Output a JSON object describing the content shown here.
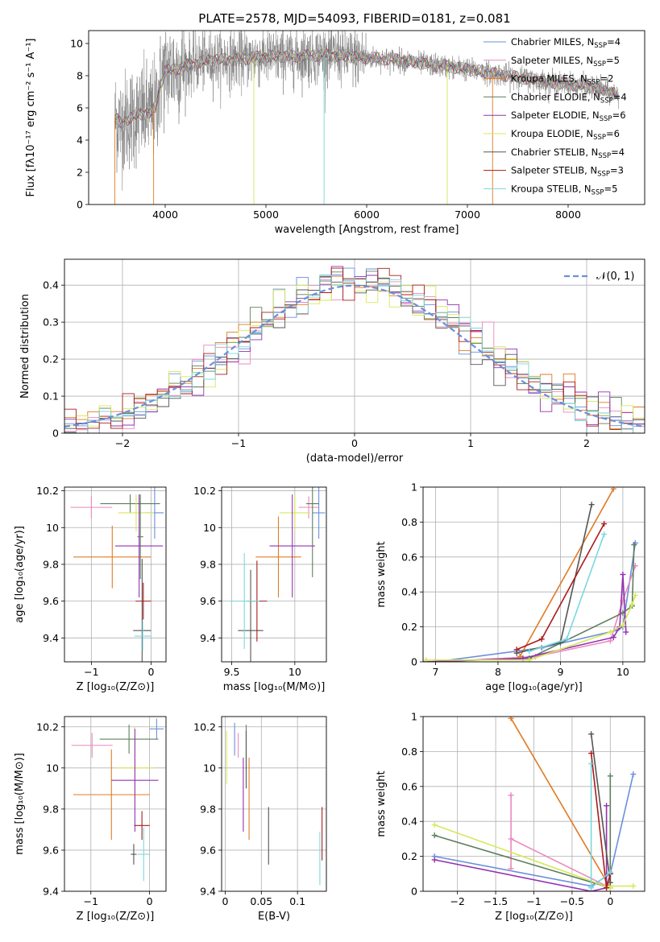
{
  "figure_title": "PLATE=2578, MJD=54093, FIBERID=0181, z=0.081",
  "series_colors": {
    "Chabrier MILES": "#6a8fdc",
    "Salpeter MILES": "#e989be",
    "Kroupa MILES": "#e07b25",
    "Chabrier ELODIE": "#5e7f5e",
    "Salpeter ELODIE": "#9333b0",
    "Kroupa ELODIE": "#d6e85a",
    "Chabrier STELIB": "#555555",
    "Salpeter STELIB": "#aa1c1c",
    "Kroupa STELIB": "#7ad8de"
  },
  "legend_spectrum": [
    {
      "label": "Chabrier MILES, N",
      "sub": "SSP",
      "suffix": "=4",
      "series": "Chabrier MILES"
    },
    {
      "label": "Salpeter MILES, N",
      "sub": "SSP",
      "suffix": "=5",
      "series": "Salpeter MILES"
    },
    {
      "label": "Kroupa MILES, N",
      "sub": "SSP",
      "suffix": "=2",
      "series": "Kroupa MILES"
    },
    {
      "label": "Chabrier ELODIE, N",
      "sub": "SSP",
      "suffix": "=4",
      "series": "Chabrier ELODIE"
    },
    {
      "label": "Salpeter ELODIE, N",
      "sub": "SSP",
      "suffix": "=6",
      "series": "Salpeter ELODIE"
    },
    {
      "label": "Kroupa ELODIE, N",
      "sub": "SSP",
      "suffix": "=6",
      "series": "Kroupa ELODIE"
    },
    {
      "label": "Chabrier STELIB, N",
      "sub": "SSP",
      "suffix": "=4",
      "series": "Chabrier STELIB"
    },
    {
      "label": "Salpeter STELIB, N",
      "sub": "SSP",
      "suffix": "=3",
      "series": "Salpeter STELIB"
    },
    {
      "label": "Kroupa STELIB, N",
      "sub": "SSP",
      "suffix": "=5",
      "series": "Kroupa STELIB"
    }
  ],
  "legend_hist": {
    "label": "𝒩(0, 1)",
    "color": "#6a8fdc"
  },
  "chart_data": [
    {
      "id": "spectrum",
      "type": "line",
      "xlabel": "wavelength [Angstrom, rest frame]",
      "ylabel": "Flux [fλ10⁻¹⁷ erg cm⁻² s⁻¹ A⁻¹]",
      "xlim": [
        3240,
        8760
      ],
      "ylim": [
        0,
        10.8
      ],
      "xticks": [
        4000,
        5000,
        6000,
        7000,
        8000
      ],
      "yticks": [
        0,
        2,
        4,
        6,
        8,
        10
      ],
      "grid": false,
      "legend_position": "right",
      "observed_color": "#808080",
      "model_color": "#7ad8de",
      "continuum": [
        [
          3500,
          5.4
        ],
        [
          3560,
          5.0
        ],
        [
          3650,
          5.4
        ],
        [
          3750,
          5.6
        ],
        [
          3850,
          5.7
        ],
        [
          3900,
          6.0
        ],
        [
          3950,
          7.4
        ],
        [
          4000,
          8.3
        ],
        [
          4100,
          8.4
        ],
        [
          4300,
          8.8
        ],
        [
          4500,
          9.0
        ],
        [
          4700,
          9.0
        ],
        [
          5000,
          9.2
        ],
        [
          5300,
          9.2
        ],
        [
          5600,
          9.3
        ],
        [
          6000,
          9.1
        ],
        [
          6300,
          9.0
        ],
        [
          6600,
          8.7
        ],
        [
          6900,
          8.5
        ],
        [
          7200,
          8.2
        ],
        [
          7500,
          7.9
        ],
        [
          7800,
          7.6
        ],
        [
          8100,
          7.4
        ],
        [
          8300,
          7.2
        ],
        [
          8500,
          6.8
        ]
      ]
    },
    {
      "id": "residual_histogram",
      "type": "step",
      "xlabel": "(data-model)/error",
      "ylabel": "Normed distribution",
      "xlim": [
        -2.5,
        2.5
      ],
      "ylim": [
        0,
        0.47
      ],
      "xticks": [
        -2,
        -1,
        0,
        1,
        2
      ],
      "yticks": [
        0.0,
        0.1,
        0.2,
        0.3,
        0.4
      ],
      "grid": true,
      "legend_position": "top-right",
      "bin_width": 0.1,
      "reference_curve": "normal(0,1)"
    },
    {
      "id": "age_vs_Z",
      "type": "errorbar",
      "xlabel": "Z [log₁₀(Z/Z⊙)]",
      "ylabel": "age  [log₁₀(age/yr)]",
      "xlim": [
        -1.45,
        0.25
      ],
      "ylim": [
        9.27,
        10.22
      ],
      "xticks": [
        -1,
        0
      ],
      "yticks": [
        9.4,
        9.6,
        9.8,
        10.0,
        10.2
      ],
      "grid": true,
      "points": [
        {
          "series": "Salpeter MILES",
          "x": -1.0,
          "xerr": 0.35,
          "y": 10.11,
          "yerr": 0.06
        },
        {
          "series": "Kroupa MILES",
          "x": -0.65,
          "xerr": 0.65,
          "y": 9.84,
          "yerr": 0.17
        },
        {
          "series": "Chabrier MILES",
          "x": 0.06,
          "xerr": 0.15,
          "y": 10.08,
          "yerr": 0.14
        },
        {
          "series": "Chabrier ELODIE",
          "x": -0.35,
          "xerr": 0.5,
          "y": 10.13,
          "yerr": 0.05
        },
        {
          "series": "Kroupa ELODIE",
          "x": -0.25,
          "xerr": 0.3,
          "y": 10.08,
          "yerr": 0.1
        },
        {
          "series": "Salpeter ELODIE",
          "x": -0.2,
          "xerr": 0.4,
          "y": 9.9,
          "yerr": 0.28
        },
        {
          "series": "Chabrier STELIB",
          "x": -0.15,
          "xerr": 0.15,
          "y": 9.44,
          "yerr": 0.39
        },
        {
          "series": "Salpeter STELIB",
          "x": -0.13,
          "xerr": 0.13,
          "y": 9.6,
          "yerr": 0.1
        },
        {
          "series": "Kroupa STELIB",
          "x": -0.14,
          "xerr": 0.14,
          "y": 9.41,
          "yerr": 0.08
        },
        {
          "series": "Chabrier ELODIE",
          "x": -0.18,
          "xerr": 0.05,
          "y": 9.95,
          "yerr": 0.23
        }
      ]
    },
    {
      "id": "age_vs_mass",
      "type": "errorbar",
      "xlabel": "mass [log₁₀(M/M⊙)]",
      "ylabel": "",
      "xlim": [
        9.42,
        10.25
      ],
      "ylim": [
        9.27,
        10.22
      ],
      "xticks": [
        9.5,
        10.0
      ],
      "yticks": [
        9.4,
        9.6,
        9.8,
        10.0,
        10.2
      ],
      "grid": true,
      "points": [
        {
          "series": "Kroupa MILES",
          "x": 9.87,
          "xerr": 0.18,
          "y": 9.84,
          "yerr": 0.22
        },
        {
          "series": "Salpeter MILES",
          "x": 10.11,
          "xerr": 0.08,
          "y": 10.11,
          "yerr": 0.06
        },
        {
          "series": "Chabrier MILES",
          "x": 10.19,
          "xerr": 0.05,
          "y": 10.08,
          "yerr": 0.14
        },
        {
          "series": "Chabrier ELODIE",
          "x": 10.14,
          "xerr": 0.05,
          "y": 10.13,
          "yerr": 0.4
        },
        {
          "series": "Kroupa ELODIE",
          "x": 10.0,
          "xerr": 0.12,
          "y": 10.08,
          "yerr": 0.1
        },
        {
          "series": "Salpeter ELODIE",
          "x": 9.98,
          "xerr": 0.18,
          "y": 9.9,
          "yerr": 0.28
        },
        {
          "series": "Chabrier STELIB",
          "x": 9.65,
          "xerr": 0.1,
          "y": 9.44,
          "yerr": 0.33
        },
        {
          "series": "Salpeter STELIB",
          "x": 9.7,
          "xerr": 0.08,
          "y": 9.6,
          "yerr": 0.22
        },
        {
          "series": "Kroupa STELIB",
          "x": 9.6,
          "xerr": 0.12,
          "y": 9.6,
          "yerr": 0.26
        }
      ]
    },
    {
      "id": "mass_weight_vs_age",
      "type": "line",
      "xlabel": "age  [log₁₀(age/yr)]",
      "ylabel": "mass weight",
      "xlim": [
        6.8,
        10.35
      ],
      "ylim": [
        0,
        1.0
      ],
      "xticks": [
        7,
        8,
        9,
        10
      ],
      "yticks": [
        0.0,
        0.2,
        0.4,
        0.6,
        0.8,
        1.0
      ],
      "grid": true,
      "series": [
        {
          "name": "Chabrier MILES",
          "points": [
            [
              7.0,
              0.0
            ],
            [
              8.7,
              0.08
            ],
            [
              9.9,
              0.18
            ],
            [
              10.0,
              0.2
            ],
            [
              10.2,
              0.68
            ]
          ]
        },
        {
          "name": "Salpeter MILES",
          "points": [
            [
              7.0,
              0.0
            ],
            [
              8.6,
              0.03
            ],
            [
              9.8,
              0.12
            ],
            [
              10.0,
              0.35
            ],
            [
              10.2,
              0.55
            ]
          ]
        },
        {
          "name": "Kroupa MILES",
          "points": [
            [
              8.35,
              0.03
            ],
            [
              9.85,
              0.99
            ]
          ]
        },
        {
          "name": "Chabrier ELODIE",
          "points": [
            [
              6.85,
              0.0
            ],
            [
              8.5,
              0.02
            ],
            [
              10.0,
              0.28
            ],
            [
              10.15,
              0.32
            ],
            [
              10.18,
              0.67
            ]
          ]
        },
        {
          "name": "Salpeter ELODIE",
          "points": [
            [
              6.85,
              0.0
            ],
            [
              8.4,
              0.02
            ],
            [
              9.85,
              0.14
            ],
            [
              9.95,
              0.2
            ],
            [
              10.0,
              0.5
            ],
            [
              10.05,
              0.17
            ]
          ]
        },
        {
          "name": "Kroupa ELODIE",
          "points": [
            [
              6.85,
              0.01
            ],
            [
              8.5,
              0.01
            ],
            [
              9.8,
              0.17
            ],
            [
              10.0,
              0.21
            ],
            [
              10.15,
              0.33
            ],
            [
              10.2,
              0.38
            ]
          ]
        },
        {
          "name": "Chabrier STELIB",
          "points": [
            [
              8.3,
              0.05
            ],
            [
              9.0,
              0.11
            ],
            [
              9.5,
              0.9
            ]
          ]
        },
        {
          "name": "Salpeter STELIB",
          "points": [
            [
              8.3,
              0.07
            ],
            [
              8.7,
              0.13
            ],
            [
              9.7,
              0.79
            ]
          ]
        },
        {
          "name": "Kroupa STELIB",
          "points": [
            [
              8.5,
              0.06
            ],
            [
              9.1,
              0.13
            ],
            [
              9.7,
              0.73
            ]
          ]
        }
      ]
    },
    {
      "id": "mass_vs_Z",
      "type": "errorbar",
      "xlabel": "Z [log₁₀(Z/Z⊙)]",
      "ylabel": "mass [log₁₀(M/M⊙)]",
      "xlim": [
        -1.45,
        0.28
      ],
      "ylim": [
        9.4,
        10.25
      ],
      "xticks": [
        -1,
        0
      ],
      "yticks": [
        9.4,
        9.6,
        9.8,
        10.0,
        10.2
      ],
      "grid": true,
      "points": [
        {
          "series": "Salpeter MILES",
          "x": -0.98,
          "xerr": 0.35,
          "y": 10.11,
          "yerr": 0.06
        },
        {
          "series": "Kroupa MILES",
          "x": -0.65,
          "xerr": 0.65,
          "y": 9.87,
          "yerr": 0.22
        },
        {
          "series": "Chabrier MILES",
          "x": 0.12,
          "xerr": 0.12,
          "y": 10.19,
          "yerr": 0.05
        },
        {
          "series": "Chabrier ELODIE",
          "x": -0.35,
          "xerr": 0.5,
          "y": 10.14,
          "yerr": 0.07
        },
        {
          "series": "Kroupa ELODIE",
          "x": -0.25,
          "xerr": 0.32,
          "y": 10.0,
          "yerr": 0.2
        },
        {
          "series": "Salpeter ELODIE",
          "x": -0.25,
          "xerr": 0.4,
          "y": 9.94,
          "yerr": 0.25
        },
        {
          "series": "Chabrier STELIB",
          "x": -0.27,
          "xerr": 0.05,
          "y": 9.58,
          "yerr": 0.05
        },
        {
          "series": "Salpeter STELIB",
          "x": -0.13,
          "xerr": 0.13,
          "y": 9.72,
          "yerr": 0.07
        },
        {
          "series": "Kroupa STELIB",
          "x": -0.1,
          "xerr": 0.1,
          "y": 9.58,
          "yerr": 0.13
        }
      ]
    },
    {
      "id": "mass_vs_EBV",
      "type": "errorbar",
      "xlabel": "E(B-V)",
      "ylabel": "",
      "xlim": [
        -0.005,
        0.14
      ],
      "ylim": [
        9.4,
        10.25
      ],
      "xticks": [
        0.0,
        0.05,
        0.1
      ],
      "yticks": [
        9.4,
        9.6,
        9.8,
        10.0,
        10.2
      ],
      "grid": true,
      "points": [
        {
          "series": "Kroupa ELODIE",
          "x": 0.002,
          "xerr": 0.0,
          "y": 10.05,
          "yerr": 0.13
        },
        {
          "series": "Chabrier MILES",
          "x": 0.013,
          "xerr": 0.0,
          "y": 10.14,
          "yerr": 0.08
        },
        {
          "series": "Salpeter MILES",
          "x": 0.018,
          "xerr": 0.0,
          "y": 10.11,
          "yerr": 0.06
        },
        {
          "series": "Salpeter ELODIE",
          "x": 0.025,
          "xerr": 0.0,
          "y": 9.87,
          "yerr": 0.18
        },
        {
          "series": "Chabrier ELODIE",
          "x": 0.029,
          "xerr": 0.0,
          "y": 10.1,
          "yerr": 0.11
        },
        {
          "series": "Chabrier STELIB",
          "x": 0.029,
          "xerr": 0.0,
          "y": 10.04,
          "yerr": 0.14
        },
        {
          "series": "Kroupa MILES",
          "x": 0.033,
          "xerr": 0.0,
          "y": 9.85,
          "yerr": 0.2
        },
        {
          "series": "Chabrier STELIB",
          "x": 0.06,
          "xerr": 0.0,
          "y": 9.67,
          "yerr": 0.14
        },
        {
          "series": "Kroupa STELIB",
          "x": 0.131,
          "xerr": 0.0,
          "y": 9.56,
          "yerr": 0.13
        },
        {
          "series": "Salpeter STELIB",
          "x": 0.134,
          "xerr": 0.0,
          "y": 9.68,
          "yerr": 0.13
        }
      ]
    },
    {
      "id": "mass_weight_vs_Z",
      "type": "line",
      "xlabel": "Z [log₁₀(Z/Z⊙)]",
      "ylabel": "mass weight",
      "xlim": [
        -2.45,
        0.45
      ],
      "ylim": [
        0,
        1.0
      ],
      "xticks": [
        -2.0,
        -1.5,
        -1.0,
        -0.5,
        0.0
      ],
      "yticks": [
        0.0,
        0.2,
        0.4,
        0.6,
        0.8,
        1.0
      ],
      "grid": true,
      "series": [
        {
          "name": "Chabrier MILES",
          "points": [
            [
              -2.3,
              0.2
            ],
            [
              -0.25,
              0.03
            ],
            [
              0.0,
              0.1
            ],
            [
              0.3,
              0.67
            ]
          ]
        },
        {
          "name": "Salpeter MILES",
          "points": [
            [
              -1.3,
              0.55
            ],
            [
              -1.3,
              0.13
            ],
            [
              -1.3,
              0.3
            ],
            [
              0.0,
              0.02
            ]
          ]
        },
        {
          "name": "Kroupa MILES",
          "points": [
            [
              -1.3,
              0.99
            ],
            [
              0.0,
              0.02
            ]
          ]
        },
        {
          "name": "Chabrier ELODIE",
          "points": [
            [
              -2.3,
              0.32
            ],
            [
              0.0,
              0.02
            ],
            [
              0.0,
              0.66
            ]
          ]
        },
        {
          "name": "Salpeter ELODIE",
          "points": [
            [
              -2.3,
              0.18
            ],
            [
              -0.25,
              0.0
            ],
            [
              -0.05,
              0.02
            ],
            [
              -0.05,
              0.49
            ]
          ]
        },
        {
          "name": "Kroupa ELODIE",
          "points": [
            [
              -2.3,
              0.38
            ],
            [
              0.0,
              0.02
            ],
            [
              0.0,
              0.03
            ],
            [
              0.3,
              0.03
            ]
          ]
        },
        {
          "name": "Chabrier STELIB",
          "points": [
            [
              -0.25,
              0.9
            ],
            [
              0.0,
              0.05
            ],
            [
              0.0,
              0.1
            ]
          ]
        },
        {
          "name": "Salpeter STELIB",
          "points": [
            [
              -0.25,
              0.79
            ],
            [
              -0.05,
              0.02
            ],
            [
              0.0,
              0.1
            ]
          ]
        },
        {
          "name": "Kroupa STELIB",
          "points": [
            [
              -0.25,
              0.73
            ],
            [
              -0.25,
              0.02
            ],
            [
              0.0,
              0.11
            ]
          ]
        }
      ]
    }
  ]
}
